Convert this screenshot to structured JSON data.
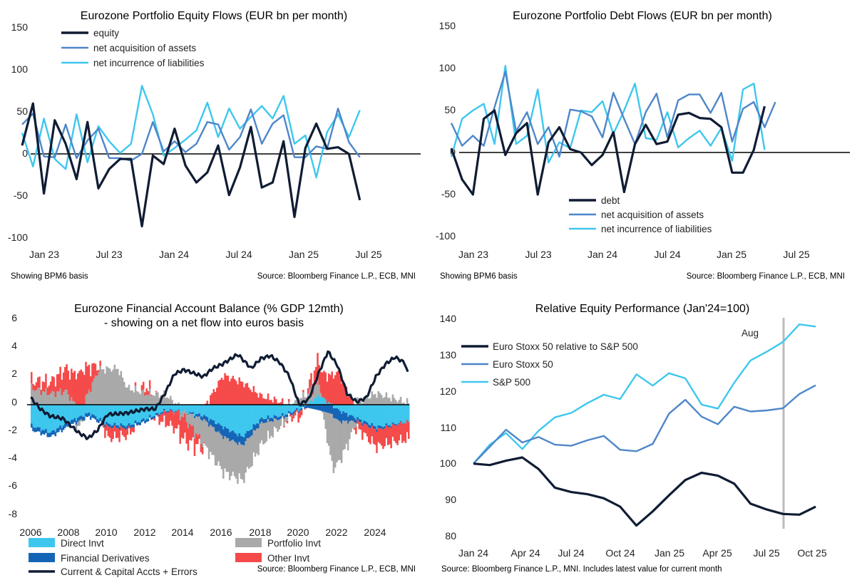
{
  "colors": {
    "dark": "#0f1c33",
    "mid": "#4f86c9",
    "light": "#3ec7ee",
    "grey": "#a9a9a9",
    "red": "#f54a4a",
    "navy": "#1565b7",
    "aug": "#bbbbbb"
  },
  "chart_data": [
    {
      "type": "line",
      "title": "Eurozone Portfolio Equity Flows (EUR bn per month)",
      "x_tick_labels": [
        "Jan 23",
        "Jul 23",
        "Jan 24",
        "Jul 24",
        "Jan 25",
        "Jul 25"
      ],
      "y_tick_labels": [
        "150",
        "100",
        "50",
        "0",
        "-50",
        "-100"
      ],
      "ylim": [
        -100,
        150
      ],
      "x_start": "Jan 2023",
      "note": "Showing BPM6 basis",
      "source": "Source: Bloomberg Finance L.P., ECB, MNI",
      "series": [
        {
          "name": "equity",
          "color_key": "dark",
          "values": [
            10,
            60,
            -47,
            40,
            12,
            -30,
            38,
            -41,
            -18,
            -6,
            -6,
            -86,
            -2,
            -12,
            30,
            -14,
            -34,
            -22,
            10,
            -49,
            -16,
            32,
            -40,
            -34,
            15,
            -75,
            7,
            36,
            6,
            8,
            0,
            -55
          ]
        },
        {
          "name": "net acquisition of assets",
          "color_key": "mid",
          "values": [
            35,
            48,
            -3,
            -4,
            35,
            -5,
            16,
            30,
            -5,
            -5,
            -8,
            0,
            38,
            3,
            15,
            2,
            12,
            38,
            35,
            5,
            20,
            53,
            12,
            36,
            46,
            -4,
            -4,
            9,
            6,
            54,
            14,
            -4
          ]
        },
        {
          "name": "net incurrence of liabilities",
          "color_key": "light",
          "values": [
            25,
            -15,
            42,
            -6,
            -18,
            47,
            -10,
            33,
            15,
            1,
            12,
            81,
            47,
            -2,
            7,
            17,
            28,
            61,
            20,
            54,
            30,
            44,
            57,
            42,
            69,
            12,
            22,
            -28,
            26,
            47,
            20,
            52
          ]
        }
      ]
    },
    {
      "type": "line",
      "title": "Eurozone Portfolio Debt Flows (EUR bn per month)",
      "x_tick_labels": [
        "Jan 23",
        "Jul 23",
        "Jan 24",
        "Jul 24",
        "Jan 25",
        "Jul 25"
      ],
      "y_tick_labels": [
        "150",
        "100",
        "50",
        "0",
        "-50",
        "-100"
      ],
      "ylim": [
        -100,
        150
      ],
      "x_start": "Jan 2023",
      "note": "Showing BPM6 basis",
      "source": "Source: Bloomberg Finance L.P., ECB, MNI",
      "series": [
        {
          "name": "debt",
          "color_key": "dark",
          "values": [
            5,
            -32,
            -50,
            40,
            50,
            -3,
            23,
            35,
            -50,
            12,
            30,
            4,
            0,
            -15,
            -3,
            24,
            -47,
            10,
            33,
            10,
            13,
            45,
            47,
            41,
            40,
            30,
            -24,
            -24,
            3,
            55
          ]
        },
        {
          "name": "net acquisition of assets",
          "color_key": "mid",
          "values": [
            35,
            8,
            20,
            8,
            54,
            96,
            25,
            48,
            10,
            30,
            -5,
            51,
            49,
            43,
            18,
            71,
            40,
            10,
            48,
            70,
            18,
            62,
            69,
            69,
            47,
            71,
            13,
            52,
            60,
            30,
            60
          ]
        },
        {
          "name": "net incurrence of liabilities",
          "color_key": "light",
          "values": [
            -5,
            40,
            50,
            58,
            10,
            103,
            10,
            20,
            75,
            -12,
            12,
            5,
            50,
            48,
            61,
            22,
            50,
            82,
            17,
            15,
            48,
            6,
            17,
            26,
            8,
            29,
            -10,
            75,
            82,
            3
          ]
        }
      ]
    },
    {
      "type": "area",
      "title_line1": "Eurozone Financial Account Balance (% GDP 12mth)",
      "title_line2": "- showing on a net flow into euros basis",
      "x_tick_labels": [
        "2006",
        "2008",
        "2010",
        "2012",
        "2014",
        "2016",
        "2018",
        "2020",
        "2022",
        "2024"
      ],
      "y_tick_labels": [
        "6",
        "4",
        "2",
        "0",
        "-2",
        "-4",
        "-6",
        "-8"
      ],
      "ylim": [
        -8,
        6
      ],
      "x_start": 2006,
      "legend": [
        "Direct Invt",
        "Portfolio Invt",
        "Financial Derivatives",
        "Other Invt",
        "Current & Capital Accts + Errors"
      ],
      "source": "Source: Bloomberg Finance L.P., ECB, MNI",
      "stack_order": [
        "Direct Invt",
        "Financial Derivatives",
        "Portfolio Invt",
        "Other Invt"
      ],
      "series": [
        {
          "name": "Direct Invt",
          "color_key": "light",
          "knots": [
            [
              2006,
              -1.5
            ],
            [
              2007,
              -2.0
            ],
            [
              2008,
              -1.2
            ],
            [
              2009,
              -0.6
            ],
            [
              2010,
              -1.4
            ],
            [
              2011,
              -1.5
            ],
            [
              2012,
              -1.0
            ],
            [
              2013,
              -0.4
            ],
            [
              2014,
              -0.5
            ],
            [
              2015,
              -0.8
            ],
            [
              2016,
              -1.6
            ],
            [
              2017,
              -2.3
            ],
            [
              2018,
              -1.0
            ],
            [
              2019,
              -0.8
            ],
            [
              2020,
              -0.3
            ],
            [
              2021,
              0.7
            ],
            [
              2022,
              -0.4
            ],
            [
              2023,
              -1.0
            ],
            [
              2024,
              -1.6
            ],
            [
              2025.7,
              -1.2
            ]
          ]
        },
        {
          "name": "Financial Derivatives",
          "color_key": "navy",
          "knots": [
            [
              2006,
              -0.3
            ],
            [
              2008,
              -0.3
            ],
            [
              2010,
              -0.2
            ],
            [
              2012,
              -0.2
            ],
            [
              2014,
              0.0
            ],
            [
              2015,
              -0.3
            ],
            [
              2016,
              -0.7
            ],
            [
              2017,
              -0.6
            ],
            [
              2018,
              -0.3
            ],
            [
              2020,
              -0.1
            ],
            [
              2021,
              -0.4
            ],
            [
              2022,
              -0.8
            ],
            [
              2023,
              -0.2
            ],
            [
              2024,
              -0.2
            ],
            [
              2025.7,
              0.0
            ]
          ]
        },
        {
          "name": "Portfolio Invt",
          "color_key": "grey",
          "knots": [
            [
              2006,
              1.2
            ],
            [
              2007,
              0.8
            ],
            [
              2007.8,
              1.0
            ],
            [
              2008.5,
              -0.5
            ],
            [
              2009.5,
              2.5
            ],
            [
              2010.5,
              2.6
            ],
            [
              2011,
              1.2
            ],
            [
              2012,
              0.8
            ],
            [
              2013,
              0.7
            ],
            [
              2014,
              -0.5
            ],
            [
              2015,
              -1.8
            ],
            [
              2016,
              -2.5
            ],
            [
              2017,
              -2.5
            ],
            [
              2018,
              -1.5
            ],
            [
              2019,
              -0.5
            ],
            [
              2020,
              0.5
            ],
            [
              2021,
              1.0
            ],
            [
              2021.7,
              -3.8
            ],
            [
              2022.5,
              -1.6
            ],
            [
              2023,
              0.3
            ],
            [
              2024,
              0.8
            ],
            [
              2025.7,
              0.1
            ]
          ]
        },
        {
          "name": "Other Invt",
          "color_key": "red",
          "knots": [
            [
              2006,
              0.5
            ],
            [
              2007,
              0.8
            ],
            [
              2008,
              1.8
            ],
            [
              2008.7,
              2.5
            ],
            [
              2009.5,
              0.3
            ],
            [
              2010,
              -0.8
            ],
            [
              2011,
              -0.5
            ],
            [
              2012,
              0.5
            ],
            [
              2013,
              -0.8
            ],
            [
              2014,
              -1.6
            ],
            [
              2015,
              -0.2
            ],
            [
              2016,
              2.1
            ],
            [
              2017,
              1.6
            ],
            [
              2018,
              0.6
            ],
            [
              2019,
              0.2
            ],
            [
              2020,
              -0.5
            ],
            [
              2021,
              1.6
            ],
            [
              2022,
              2.3
            ],
            [
              2023,
              -0.5
            ],
            [
              2024,
              -1.2
            ],
            [
              2025.7,
              -1.2
            ]
          ]
        },
        {
          "name": "Current & Capital Accts + Errors",
          "color_key": "dark",
          "knots": [
            [
              2006,
              0.5
            ],
            [
              2006.5,
              -0.3
            ],
            [
              2007,
              -0.8
            ],
            [
              2007.7,
              -1.0
            ],
            [
              2008.5,
              -2.0
            ],
            [
              2009,
              -2.4
            ],
            [
              2009.5,
              -1.8
            ],
            [
              2010,
              -0.7
            ],
            [
              2011,
              -0.6
            ],
            [
              2012,
              -0.3
            ],
            [
              2012.5,
              -0.3
            ],
            [
              2013,
              0.8
            ],
            [
              2013.5,
              2.2
            ],
            [
              2014,
              2.5
            ],
            [
              2015,
              2.0
            ],
            [
              2015.5,
              2.6
            ],
            [
              2016,
              2.9
            ],
            [
              2016.8,
              3.6
            ],
            [
              2017.5,
              2.6
            ],
            [
              2018,
              3.3
            ],
            [
              2018.5,
              3.5
            ],
            [
              2019,
              3.0
            ],
            [
              2019.5,
              2.0
            ],
            [
              2020,
              0.0
            ],
            [
              2020.5,
              0.4
            ],
            [
              2021,
              2.2
            ],
            [
              2021.5,
              3.8
            ],
            [
              2022,
              2.8
            ],
            [
              2022.5,
              0.8
            ],
            [
              2023,
              0.2
            ],
            [
              2023.5,
              0.5
            ],
            [
              2024,
              2.0
            ],
            [
              2024.5,
              2.9
            ],
            [
              2025,
              3.4
            ],
            [
              2025.5,
              3.0
            ],
            [
              2025.7,
              2.1
            ]
          ]
        }
      ]
    },
    {
      "type": "line",
      "title": "Relative Equity Performance (Jan'24=100)",
      "x_tick_labels": [
        "Jan 24",
        "Apr 24",
        "Jul 24",
        "Oct 24",
        "Jan 25",
        "Apr 25",
        "Jul 25",
        "Oct 25"
      ],
      "y_tick_labels": [
        "140",
        "130",
        "120",
        "110",
        "100",
        "90",
        "80"
      ],
      "ylim": [
        80,
        140
      ],
      "annotation": "Aug",
      "source": "Source: Bloomberg Finance L.P., MNI. Includes latest value for current month",
      "series": [
        {
          "name": "Euro Stoxx 50 relative to S&P 500",
          "color_key": "dark",
          "values": [
            100,
            99.6,
            100.8,
            101.7,
            98.5,
            93.4,
            92.2,
            91.6,
            90.5,
            88.2,
            83.0,
            86.9,
            91.3,
            95.5,
            97.5,
            96.7,
            94.5,
            89.0,
            87.4,
            86.2,
            86.0,
            88.2
          ]
        },
        {
          "name": "Euro Stoxx 50",
          "color_key": "mid",
          "values": [
            100,
            104.6,
            109.3,
            105.8,
            107.3,
            105.2,
            104.9,
            106.4,
            107.6,
            103.8,
            103.4,
            105.4,
            113.7,
            117.5,
            112.9,
            110.8,
            115.6,
            114.3,
            114.6,
            115.2,
            119.1,
            121.5
          ]
        },
        {
          "name": "S&P 500",
          "color_key": "light",
          "values": [
            100,
            105.2,
            108.4,
            104.0,
            109.0,
            112.7,
            113.9,
            116.6,
            118.9,
            117.7,
            124.5,
            121.4,
            124.8,
            123.4,
            116.2,
            115.1,
            122.2,
            128.3,
            130.7,
            133.4,
            138.2,
            137.6
          ]
        }
      ]
    }
  ]
}
